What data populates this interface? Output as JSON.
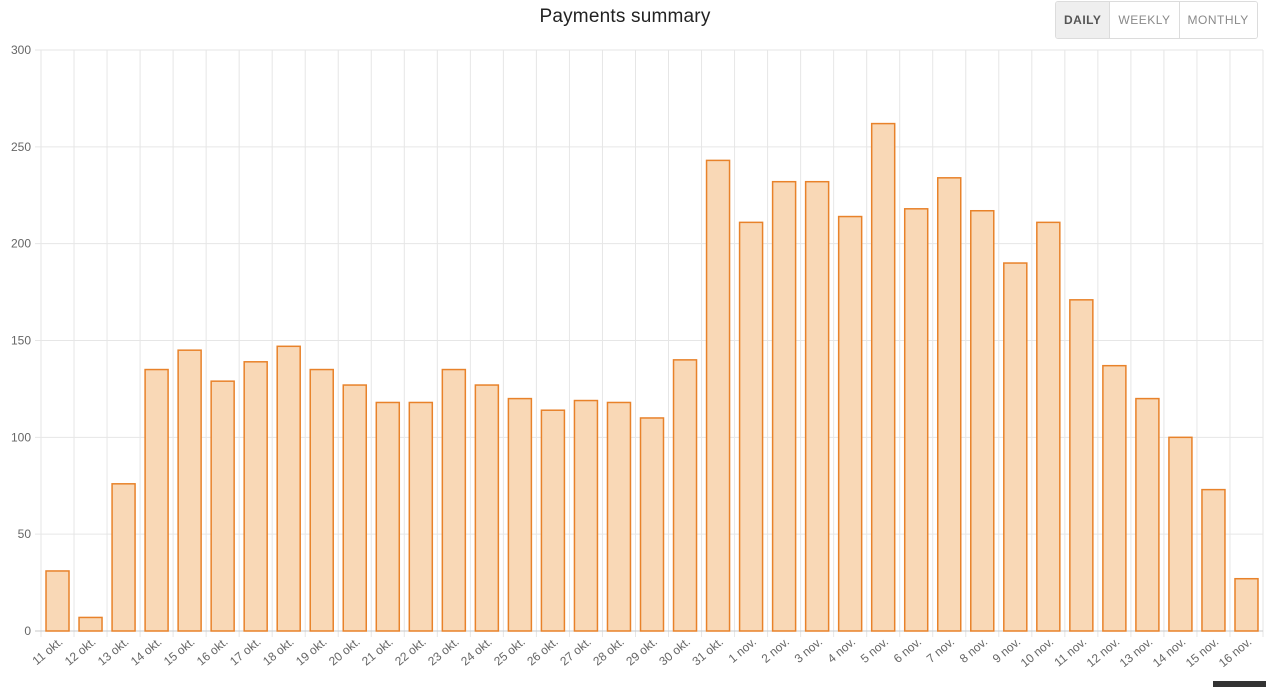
{
  "header": {
    "title": "Payments summary",
    "range_buttons": [
      {
        "label": "DAILY",
        "active": true
      },
      {
        "label": "WEEKLY",
        "active": false
      },
      {
        "label": "MONTHLY",
        "active": false
      }
    ]
  },
  "chart_data": {
    "type": "bar",
    "title": "Payments summary",
    "xlabel": "",
    "ylabel": "",
    "ylim": [
      0,
      300
    ],
    "yticks": [
      0,
      50,
      100,
      150,
      200,
      250,
      300
    ],
    "grid": true,
    "bar_fill": "#f9d8b6",
    "bar_stroke": "#e8822a",
    "categories": [
      "11 okt.",
      "12 okt.",
      "13 okt.",
      "14 okt.",
      "15 okt.",
      "16 okt.",
      "17 okt.",
      "18 okt.",
      "19 okt.",
      "20 okt.",
      "21 okt.",
      "22 okt.",
      "23 okt.",
      "24 okt.",
      "25 okt.",
      "26 okt.",
      "27 okt.",
      "28 okt.",
      "29 okt.",
      "30 okt.",
      "31 okt.",
      "1 nov.",
      "2 nov.",
      "3 nov.",
      "4 nov.",
      "5 nov.",
      "6 nov.",
      "7 nov.",
      "8 nov.",
      "9 nov.",
      "10 nov.",
      "11 nov.",
      "12 nov.",
      "13 nov.",
      "14 nov.",
      "15 nov.",
      "16 nov."
    ],
    "values": [
      31,
      7,
      76,
      135,
      145,
      129,
      139,
      147,
      135,
      127,
      118,
      118,
      135,
      127,
      120,
      114,
      119,
      118,
      110,
      140,
      243,
      211,
      232,
      232,
      214,
      262,
      218,
      234,
      217,
      190,
      211,
      171,
      137,
      120,
      100,
      73,
      27
    ]
  }
}
